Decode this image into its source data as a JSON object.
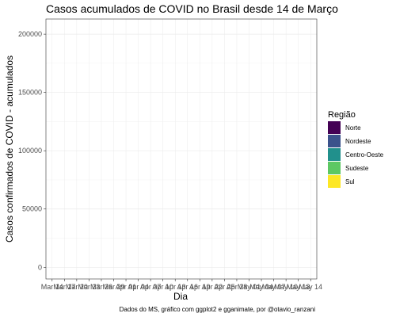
{
  "chart_data": {
    "type": "bar",
    "title": "Casos acumulados de COVID no Brasil desde 14 de Março",
    "xlabel": "Dia",
    "ylabel": "Casos confirmados de COVID - acumulados",
    "caption": "Dados do MS, gráfico com ggplot2 e gganimate, por @otavio_ranzani",
    "x_tick_labels": [
      "Mar 14",
      "Mar 17",
      "Mar 20",
      "Mar 23",
      "Mar 26",
      "Mar 29",
      "Apr 01",
      "Apr 04",
      "Apr 07",
      "Apr 10",
      "Apr 13",
      "Apr 16",
      "Apr 19",
      "Apr 22",
      "Apr 25",
      "Apr 28",
      "May 01",
      "May 04",
      "May 07",
      "May 10",
      "May 13",
      "May 14"
    ],
    "y_ticks": [
      0,
      50000,
      100000,
      150000,
      200000
    ],
    "ylim": [
      -10000,
      213000
    ],
    "grid": true,
    "legend": {
      "title": "Região",
      "placement": "right",
      "entries": [
        {
          "name": "Norte",
          "color": "#440154"
        },
        {
          "name": "Nordeste",
          "color": "#3B528B"
        },
        {
          "name": "Centro-Oeste",
          "color": "#21908C"
        },
        {
          "name": "Sudeste",
          "color": "#5DC863"
        },
        {
          "name": "Sul",
          "color": "#FDE725"
        }
      ]
    },
    "series": []
  }
}
